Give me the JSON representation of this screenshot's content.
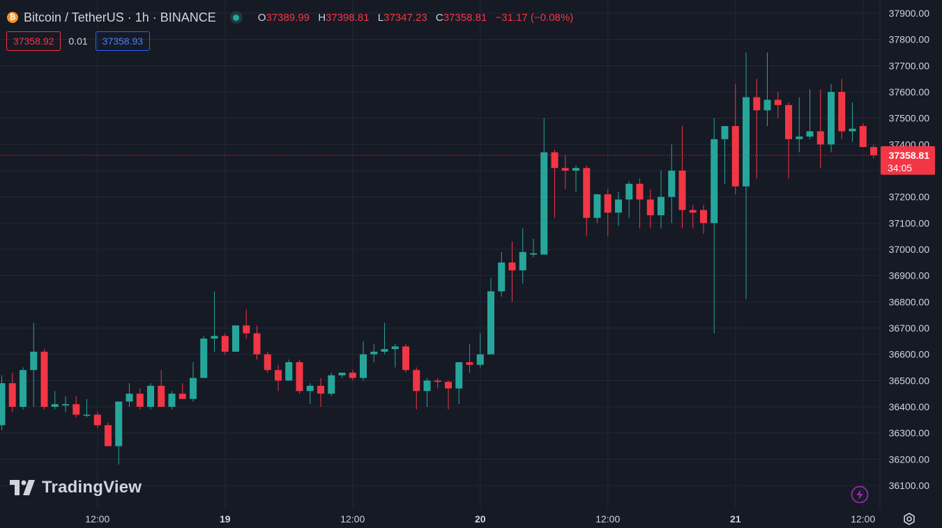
{
  "header": {
    "symbol_title": "Bitcoin / TetherUS · 1h · BINANCE",
    "coin_glyph": "₿",
    "ohlc": {
      "o_label": "O",
      "o_value": "37389.99",
      "h_label": "H",
      "h_value": "37398.81",
      "l_label": "L",
      "l_value": "37347.23",
      "c_label": "C",
      "c_value": "37358.81",
      "change": "−31.17 (−0.08%)"
    }
  },
  "quotes": {
    "bid": "37358.92",
    "spread": "0.01",
    "ask": "37358.93"
  },
  "branding": {
    "logo_text": "TradingView"
  },
  "colors": {
    "up": "#26a69a",
    "down": "#f23645",
    "background": "#161a25",
    "grid": "#242837",
    "text": "#d1d4dc"
  },
  "icons": {
    "logo": "tradingview-logo-icon",
    "bolt": "lightning-icon",
    "settings": "gear-icon"
  },
  "chart_data": {
    "type": "candlestick",
    "interval": "1h",
    "ylim": [
      36040,
      37930
    ],
    "y_ticks": [
      "37900.00",
      "37800.00",
      "37700.00",
      "37600.00",
      "37500.00",
      "37400.00",
      "37300.00",
      "37200.00",
      "37100.00",
      "37000.00",
      "36900.00",
      "36800.00",
      "36700.00",
      "36600.00",
      "36500.00",
      "36400.00",
      "36300.00",
      "36200.00",
      "36100.00"
    ],
    "x_ticks": [
      {
        "label": "12:00",
        "bar": 9
      },
      {
        "label": "19",
        "bar": 21
      },
      {
        "label": "12:00",
        "bar": 33
      },
      {
        "label": "20",
        "bar": 45
      },
      {
        "label": "12:00",
        "bar": 57
      },
      {
        "label": "21",
        "bar": 69
      },
      {
        "label": "12:00",
        "bar": 81
      }
    ],
    "last_price": {
      "value": 37358.81,
      "label": "37358.81",
      "countdown": "34:05"
    },
    "candles": [
      {
        "o": 36330,
        "h": 36520,
        "l": 36310,
        "c": 36490
      },
      {
        "o": 36490,
        "h": 36530,
        "l": 36380,
        "c": 36400
      },
      {
        "o": 36400,
        "h": 36550,
        "l": 36390,
        "c": 36540
      },
      {
        "o": 36540,
        "h": 36720,
        "l": 36400,
        "c": 36610
      },
      {
        "o": 36610,
        "h": 36620,
        "l": 36390,
        "c": 36400
      },
      {
        "o": 36400,
        "h": 36460,
        "l": 36390,
        "c": 36410
      },
      {
        "o": 36405,
        "h": 36440,
        "l": 36380,
        "c": 36410
      },
      {
        "o": 36410,
        "h": 36440,
        "l": 36360,
        "c": 36370
      },
      {
        "o": 36370,
        "h": 36430,
        "l": 36360,
        "c": 36370
      },
      {
        "o": 36370,
        "h": 36380,
        "l": 36320,
        "c": 36330
      },
      {
        "o": 36330,
        "h": 36340,
        "l": 36250,
        "c": 36250
      },
      {
        "o": 36250,
        "h": 36420,
        "l": 36180,
        "c": 36420
      },
      {
        "o": 36420,
        "h": 36490,
        "l": 36400,
        "c": 36450
      },
      {
        "o": 36450,
        "h": 36470,
        "l": 36390,
        "c": 36400
      },
      {
        "o": 36400,
        "h": 36490,
        "l": 36390,
        "c": 36480
      },
      {
        "o": 36480,
        "h": 36540,
        "l": 36400,
        "c": 36400
      },
      {
        "o": 36400,
        "h": 36460,
        "l": 36390,
        "c": 36450
      },
      {
        "o": 36450,
        "h": 36490,
        "l": 36440,
        "c": 36430
      },
      {
        "o": 36430,
        "h": 36570,
        "l": 36420,
        "c": 36510
      },
      {
        "o": 36510,
        "h": 36670,
        "l": 36510,
        "c": 36660
      },
      {
        "o": 36660,
        "h": 36840,
        "l": 36610,
        "c": 36670
      },
      {
        "o": 36670,
        "h": 36680,
        "l": 36600,
        "c": 36610
      },
      {
        "o": 36610,
        "h": 36710,
        "l": 36610,
        "c": 36710
      },
      {
        "o": 36710,
        "h": 36770,
        "l": 36660,
        "c": 36680
      },
      {
        "o": 36680,
        "h": 36710,
        "l": 36580,
        "c": 36600
      },
      {
        "o": 36600,
        "h": 36610,
        "l": 36530,
        "c": 36540
      },
      {
        "o": 36540,
        "h": 36560,
        "l": 36460,
        "c": 36500
      },
      {
        "o": 36500,
        "h": 36580,
        "l": 36500,
        "c": 36570
      },
      {
        "o": 36570,
        "h": 36580,
        "l": 36450,
        "c": 36460
      },
      {
        "o": 36460,
        "h": 36490,
        "l": 36410,
        "c": 36480
      },
      {
        "o": 36480,
        "h": 36510,
        "l": 36400,
        "c": 36450
      },
      {
        "o": 36450,
        "h": 36530,
        "l": 36440,
        "c": 36520
      },
      {
        "o": 36520,
        "h": 36530,
        "l": 36510,
        "c": 36530
      },
      {
        "o": 36530,
        "h": 36540,
        "l": 36500,
        "c": 36510
      },
      {
        "o": 36510,
        "h": 36650,
        "l": 36500,
        "c": 36600
      },
      {
        "o": 36600,
        "h": 36640,
        "l": 36570,
        "c": 36610
      },
      {
        "o": 36610,
        "h": 36720,
        "l": 36600,
        "c": 36620
      },
      {
        "o": 36620,
        "h": 36640,
        "l": 36550,
        "c": 36630
      },
      {
        "o": 36630,
        "h": 36640,
        "l": 36530,
        "c": 36540
      },
      {
        "o": 36540,
        "h": 36550,
        "l": 36390,
        "c": 36460
      },
      {
        "o": 36460,
        "h": 36510,
        "l": 36400,
        "c": 36500
      },
      {
        "o": 36500,
        "h": 36510,
        "l": 36470,
        "c": 36495
      },
      {
        "o": 36495,
        "h": 36500,
        "l": 36390,
        "c": 36470
      },
      {
        "o": 36470,
        "h": 36570,
        "l": 36410,
        "c": 36570
      },
      {
        "o": 36570,
        "h": 36640,
        "l": 36530,
        "c": 36560
      },
      {
        "o": 36560,
        "h": 36680,
        "l": 36550,
        "c": 36600
      },
      {
        "o": 36600,
        "h": 36890,
        "l": 36600,
        "c": 36840
      },
      {
        "o": 36840,
        "h": 36990,
        "l": 36820,
        "c": 36950
      },
      {
        "o": 36950,
        "h": 37030,
        "l": 36800,
        "c": 36920
      },
      {
        "o": 36920,
        "h": 37080,
        "l": 36870,
        "c": 36990
      },
      {
        "o": 36980,
        "h": 37040,
        "l": 36970,
        "c": 36985
      },
      {
        "o": 36980,
        "h": 37500,
        "l": 36980,
        "c": 37370
      },
      {
        "o": 37370,
        "h": 37380,
        "l": 37120,
        "c": 37310
      },
      {
        "o": 37310,
        "h": 37360,
        "l": 37230,
        "c": 37300
      },
      {
        "o": 37300,
        "h": 37320,
        "l": 37220,
        "c": 37310
      },
      {
        "o": 37310,
        "h": 37320,
        "l": 37050,
        "c": 37120
      },
      {
        "o": 37120,
        "h": 37210,
        "l": 37100,
        "c": 37210
      },
      {
        "o": 37210,
        "h": 37230,
        "l": 37050,
        "c": 37140
      },
      {
        "o": 37140,
        "h": 37220,
        "l": 37090,
        "c": 37190
      },
      {
        "o": 37190,
        "h": 37260,
        "l": 37120,
        "c": 37250
      },
      {
        "o": 37250,
        "h": 37270,
        "l": 37080,
        "c": 37190
      },
      {
        "o": 37190,
        "h": 37230,
        "l": 37080,
        "c": 37130
      },
      {
        "o": 37130,
        "h": 37300,
        "l": 37080,
        "c": 37200
      },
      {
        "o": 37200,
        "h": 37400,
        "l": 37100,
        "c": 37300
      },
      {
        "o": 37300,
        "h": 37470,
        "l": 37080,
        "c": 37150
      },
      {
        "o": 37150,
        "h": 37170,
        "l": 37080,
        "c": 37140
      },
      {
        "o": 37150,
        "h": 37170,
        "l": 37060,
        "c": 37100
      },
      {
        "o": 37100,
        "h": 37500,
        "l": 36680,
        "c": 37420
      },
      {
        "o": 37420,
        "h": 37470,
        "l": 37250,
        "c": 37470
      },
      {
        "o": 37470,
        "h": 37630,
        "l": 37210,
        "c": 37240
      },
      {
        "o": 37240,
        "h": 37750,
        "l": 36810,
        "c": 37580
      },
      {
        "o": 37580,
        "h": 37650,
        "l": 37270,
        "c": 37530
      },
      {
        "o": 37530,
        "h": 37750,
        "l": 37470,
        "c": 37570
      },
      {
        "o": 37570,
        "h": 37600,
        "l": 37500,
        "c": 37550
      },
      {
        "o": 37550,
        "h": 37560,
        "l": 37270,
        "c": 37420
      },
      {
        "o": 37420,
        "h": 37580,
        "l": 37370,
        "c": 37430
      },
      {
        "o": 37430,
        "h": 37610,
        "l": 37420,
        "c": 37450
      },
      {
        "o": 37450,
        "h": 37610,
        "l": 37310,
        "c": 37400
      },
      {
        "o": 37400,
        "h": 37630,
        "l": 37370,
        "c": 37600
      },
      {
        "o": 37600,
        "h": 37650,
        "l": 37420,
        "c": 37450
      },
      {
        "o": 37450,
        "h": 37560,
        "l": 37410,
        "c": 37460
      },
      {
        "o": 37470,
        "h": 37480,
        "l": 37390,
        "c": 37390
      },
      {
        "o": 37390,
        "h": 37399,
        "l": 37347,
        "c": 37359
      }
    ]
  }
}
